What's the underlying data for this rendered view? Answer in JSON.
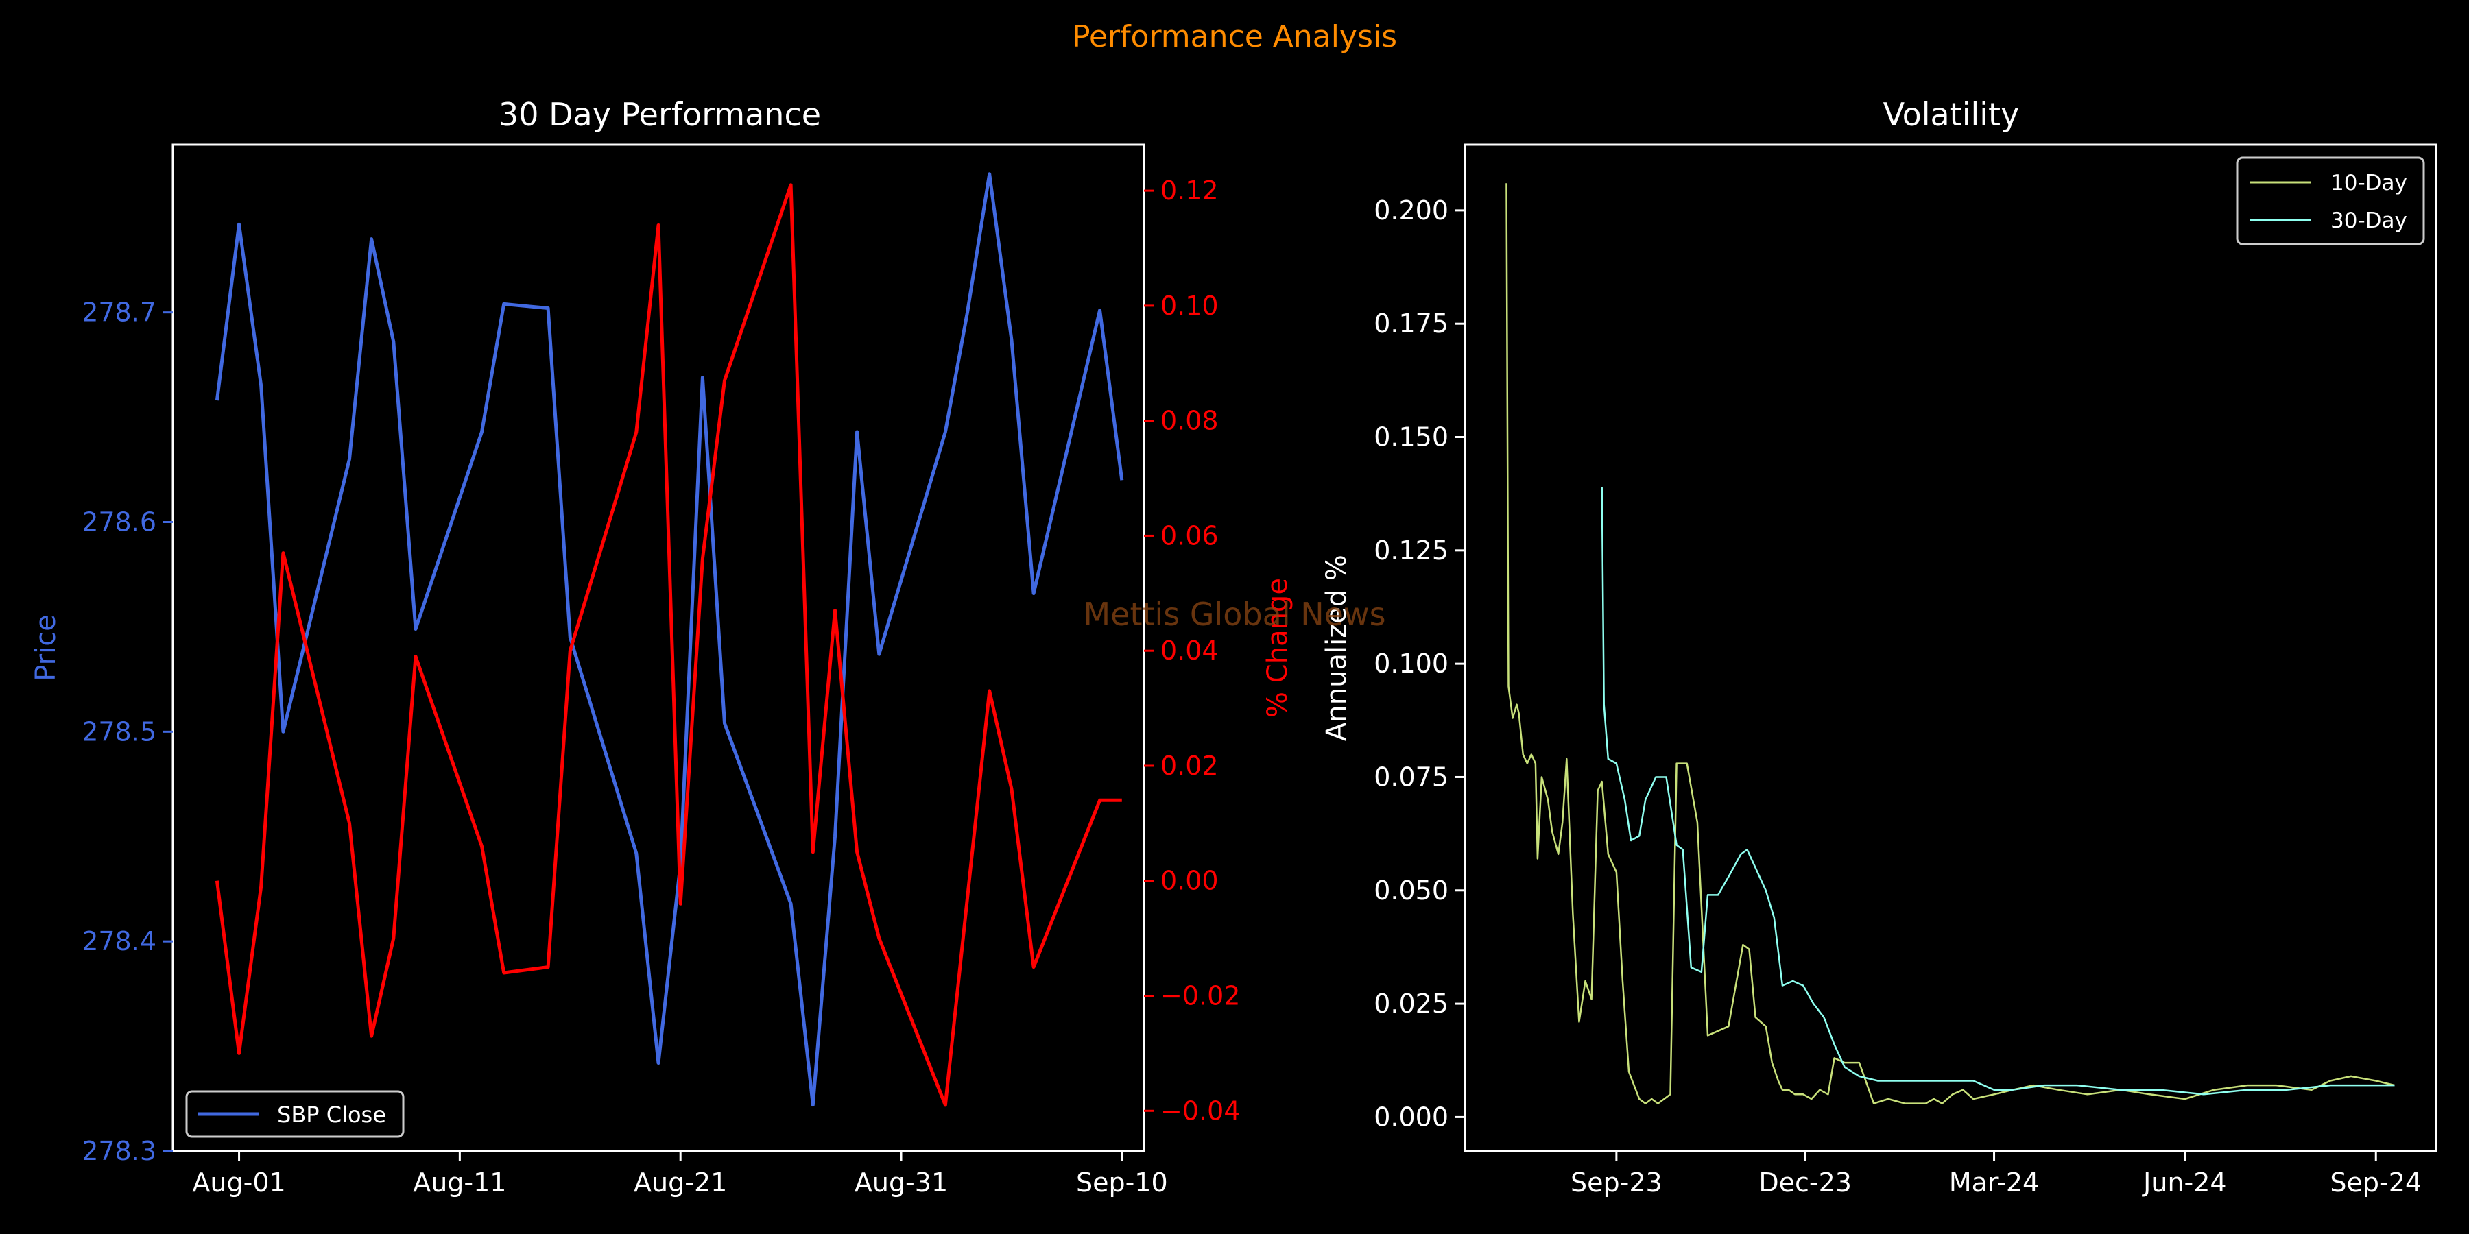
{
  "figure": {
    "suptitle": "Performance Analysis",
    "watermark": "Mettis Global News",
    "colors": {
      "background": "#000000",
      "suptitle": "#ff8c00",
      "price": "#4169e1",
      "pct": "#ff0000",
      "vol10": "#c8e07a",
      "vol30": "#8ffff0",
      "axis": "#ffffff",
      "watermark": "#8b4513"
    }
  },
  "chart_data": [
    {
      "type": "line",
      "title": "30 Day Performance",
      "xlabel": "",
      "ylabel": "Price",
      "y2label": "% Change",
      "xlim": [
        "2024-07-29",
        "2024-09-11"
      ],
      "ylim": [
        278.3,
        278.78
      ],
      "y2lim": [
        -0.047,
        0.128
      ],
      "xticks": [
        {
          "date": "2024-08-01",
          "label": "Aug-01"
        },
        {
          "date": "2024-08-11",
          "label": "Aug-11"
        },
        {
          "date": "2024-08-21",
          "label": "Aug-21"
        },
        {
          "date": "2024-08-31",
          "label": "Aug-31"
        },
        {
          "date": "2024-09-10",
          "label": "Sep-10"
        }
      ],
      "yticks": [
        "278.3",
        "278.4",
        "278.5",
        "278.6",
        "278.7"
      ],
      "y2ticks": [
        "−0.04",
        "−0.02",
        "0.00",
        "0.02",
        "0.04",
        "0.06",
        "0.08",
        "0.10",
        "0.12"
      ],
      "legend": {
        "placement": "lower-left"
      },
      "series": [
        {
          "name": "SBP Close",
          "axis": "left",
          "x": [
            "2024-07-31",
            "2024-08-01",
            "2024-08-02",
            "2024-08-03",
            "2024-08-06",
            "2024-08-07",
            "2024-08-08",
            "2024-08-09",
            "2024-08-12",
            "2024-08-13",
            "2024-08-15",
            "2024-08-16",
            "2024-08-19",
            "2024-08-20",
            "2024-08-21",
            "2024-08-22",
            "2024-08-23",
            "2024-08-26",
            "2024-08-27",
            "2024-08-28",
            "2024-08-29",
            "2024-08-30",
            "2024-09-02",
            "2024-09-03",
            "2024-09-04",
            "2024-09-05",
            "2024-09-06",
            "2024-09-09",
            "2024-09-10"
          ],
          "y": [
            278.658,
            278.742,
            278.665,
            278.5,
            278.63,
            278.735,
            278.686,
            278.549,
            278.643,
            278.704,
            278.702,
            278.545,
            278.442,
            278.342,
            278.437,
            278.669,
            278.504,
            278.418,
            278.322,
            278.45,
            278.643,
            278.537,
            278.643,
            278.7,
            278.766,
            278.687,
            278.566,
            278.701,
            278.62
          ]
        },
        {
          "name": "% Change",
          "axis": "right",
          "x": [
            "2024-07-31",
            "2024-08-01",
            "2024-08-02",
            "2024-08-03",
            "2024-08-06",
            "2024-08-07",
            "2024-08-08",
            "2024-08-09",
            "2024-08-12",
            "2024-08-13",
            "2024-08-15",
            "2024-08-16",
            "2024-08-19",
            "2024-08-20",
            "2024-08-21",
            "2024-08-22",
            "2024-08-23",
            "2024-08-26",
            "2024-08-27",
            "2024-08-28",
            "2024-08-29",
            "2024-08-30",
            "2024-09-02",
            "2024-09-03",
            "2024-09-04",
            "2024-09-05",
            "2024-09-06",
            "2024-09-09",
            "2024-09-10"
          ],
          "y": [
            0.0,
            -0.03,
            -0.001,
            0.057,
            0.01,
            -0.027,
            -0.01,
            0.039,
            0.006,
            -0.016,
            -0.015,
            0.04,
            0.078,
            0.114,
            -0.004,
            0.056,
            0.087,
            0.121,
            0.005,
            0.047,
            0.005,
            -0.01,
            -0.039,
            -0.003,
            0.033,
            0.016,
            -0.015,
            0.014,
            0.014
          ]
        }
      ]
    },
    {
      "type": "line",
      "title": "Volatility",
      "xlabel": "",
      "ylabel": "Annualized %",
      "xlim": [
        "2023-06-20",
        "2024-09-30"
      ],
      "ylim": [
        -0.0075,
        0.2145
      ],
      "xticks": [
        {
          "date": "2023-09-01",
          "label": "Sep-23"
        },
        {
          "date": "2023-12-01",
          "label": "Dec-23"
        },
        {
          "date": "2024-03-01",
          "label": "Mar-24"
        },
        {
          "date": "2024-06-01",
          "label": "Jun-24"
        },
        {
          "date": "2024-09-01",
          "label": "Sep-24"
        }
      ],
      "yticks": [
        "0.000",
        "0.025",
        "0.050",
        "0.075",
        "0.100",
        "0.125",
        "0.150",
        "0.175",
        "0.200"
      ],
      "legend": {
        "placement": "upper-right"
      },
      "series": [
        {
          "name": "10-Day",
          "x": [
            "2023-07-10",
            "2023-07-11",
            "2023-07-13",
            "2023-07-15",
            "2023-07-16",
            "2023-07-18",
            "2023-07-20",
            "2023-07-22",
            "2023-07-24",
            "2023-07-25",
            "2023-07-27",
            "2023-07-30",
            "2023-08-01",
            "2023-08-04",
            "2023-08-06",
            "2023-08-08",
            "2023-08-11",
            "2023-08-14",
            "2023-08-17",
            "2023-08-20",
            "2023-08-23",
            "2023-08-25",
            "2023-08-28",
            "2023-09-01",
            "2023-09-04",
            "2023-09-07",
            "2023-09-12",
            "2023-09-15",
            "2023-09-18",
            "2023-09-21",
            "2023-09-24",
            "2023-09-27",
            "2023-09-30",
            "2023-10-05",
            "2023-10-10",
            "2023-10-15",
            "2023-10-20",
            "2023-10-25",
            "2023-11-01",
            "2023-11-04",
            "2023-11-07",
            "2023-11-12",
            "2023-11-15",
            "2023-11-18",
            "2023-11-20",
            "2023-11-23",
            "2023-11-26",
            "2023-11-30",
            "2023-12-04",
            "2023-12-08",
            "2023-12-12",
            "2023-12-15",
            "2023-12-20",
            "2023-12-27",
            "2024-01-03",
            "2024-01-10",
            "2024-01-18",
            "2024-01-25",
            "2024-01-28",
            "2024-02-01",
            "2024-02-05",
            "2024-02-10",
            "2024-02-15",
            "2024-02-20",
            "2024-03-01",
            "2024-03-10",
            "2024-03-20",
            "2024-04-01",
            "2024-04-15",
            "2024-05-01",
            "2024-05-15",
            "2024-06-01",
            "2024-06-15",
            "2024-07-01",
            "2024-07-15",
            "2024-08-01",
            "2024-08-10",
            "2024-08-20",
            "2024-09-01",
            "2024-09-10"
          ],
          "y": [
            0.206,
            0.095,
            0.088,
            0.091,
            0.089,
            0.08,
            0.078,
            0.08,
            0.078,
            0.057,
            0.075,
            0.07,
            0.063,
            0.058,
            0.065,
            0.079,
            0.045,
            0.021,
            0.03,
            0.026,
            0.072,
            0.074,
            0.058,
            0.054,
            0.03,
            0.01,
            0.004,
            0.003,
            0.004,
            0.003,
            0.004,
            0.005,
            0.078,
            0.078,
            0.065,
            0.018,
            0.019,
            0.02,
            0.038,
            0.037,
            0.022,
            0.02,
            0.012,
            0.008,
            0.006,
            0.006,
            0.005,
            0.005,
            0.004,
            0.006,
            0.005,
            0.013,
            0.012,
            0.012,
            0.003,
            0.004,
            0.003,
            0.003,
            0.003,
            0.004,
            0.003,
            0.005,
            0.006,
            0.004,
            0.005,
            0.006,
            0.007,
            0.006,
            0.005,
            0.006,
            0.005,
            0.004,
            0.006,
            0.007,
            0.007,
            0.006,
            0.008,
            0.009,
            0.008,
            0.007
          ]
        },
        {
          "name": "30-Day",
          "x": [
            "2023-08-25",
            "2023-08-26",
            "2023-08-28",
            "2023-09-01",
            "2023-09-05",
            "2023-09-08",
            "2023-09-12",
            "2023-09-15",
            "2023-09-20",
            "2023-09-25",
            "2023-09-30",
            "2023-10-03",
            "2023-10-07",
            "2023-10-12",
            "2023-10-15",
            "2023-10-20",
            "2023-10-25",
            "2023-10-31",
            "2023-11-03",
            "2023-11-07",
            "2023-11-12",
            "2023-11-16",
            "2023-11-20",
            "2023-11-25",
            "2023-11-30",
            "2023-12-05",
            "2023-12-10",
            "2023-12-15",
            "2023-12-20",
            "2023-12-27",
            "2024-01-05",
            "2024-01-15",
            "2024-01-25",
            "2024-02-05",
            "2024-02-20",
            "2024-03-01",
            "2024-03-10",
            "2024-03-25",
            "2024-04-10",
            "2024-05-01",
            "2024-05-20",
            "2024-06-10",
            "2024-07-01",
            "2024-07-20",
            "2024-08-10",
            "2024-08-25",
            "2024-09-10"
          ],
          "y": [
            0.139,
            0.091,
            0.079,
            0.078,
            0.07,
            0.061,
            0.062,
            0.07,
            0.075,
            0.075,
            0.06,
            0.059,
            0.033,
            0.032,
            0.049,
            0.049,
            0.053,
            0.058,
            0.059,
            0.055,
            0.05,
            0.044,
            0.029,
            0.03,
            0.029,
            0.025,
            0.022,
            0.016,
            0.011,
            0.009,
            0.008,
            0.008,
            0.008,
            0.008,
            0.008,
            0.006,
            0.006,
            0.007,
            0.007,
            0.006,
            0.006,
            0.005,
            0.006,
            0.006,
            0.007,
            0.007,
            0.007
          ]
        }
      ]
    }
  ]
}
